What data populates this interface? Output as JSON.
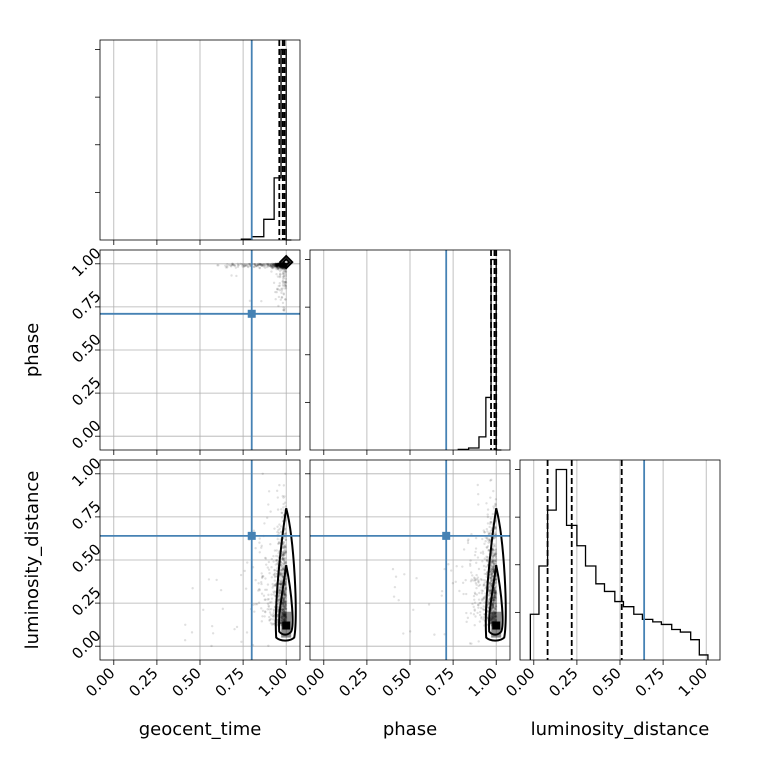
{
  "chart_data": {
    "type": "scatter",
    "parameters": [
      {
        "name": "geocent_time",
        "truth": 0.8,
        "quantiles": [
          0.96,
          0.98,
          0.99
        ]
      },
      {
        "name": "phase",
        "truth": 0.71,
        "quantiles": [
          0.97,
          0.99,
          1.0
        ]
      },
      {
        "name": "luminosity_distance",
        "truth": 0.64,
        "quantiles": [
          0.08,
          0.22,
          0.51
        ]
      }
    ],
    "axis_range": [
      -0.08,
      1.08
    ],
    "tick_values": [
      0.0,
      0.25,
      0.5,
      0.75,
      1.0
    ],
    "tick_labels": [
      "0.00",
      "0.25",
      "0.50",
      "0.75",
      "1.00"
    ],
    "truth_color": "#4682b4",
    "grid": true,
    "histograms": {
      "geocent_time": {
        "bin_edges": [
          0.74,
          0.8,
          0.87,
          0.93,
          0.97,
          1.0,
          1.03
        ],
        "heights": [
          0.01,
          0.04,
          0.25,
          0.75,
          2.3,
          0
        ]
      },
      "phase": {
        "bin_edges": [
          0.78,
          0.84,
          0.9,
          0.94,
          0.97,
          1.0,
          1.03
        ],
        "heights": [
          0.01,
          0.03,
          0.2,
          0.8,
          2.9,
          0
        ]
      },
      "luminosity_distance": {
        "bin_edges": [
          -0.02,
          0.03,
          0.08,
          0.13,
          0.19,
          0.25,
          0.3,
          0.36,
          0.41,
          0.47,
          0.52,
          0.58,
          0.63,
          0.69,
          0.74,
          0.8,
          0.85,
          0.91,
          0.96,
          1.01
        ],
        "heights": [
          0.18,
          0.37,
          0.59,
          0.75,
          0.53,
          0.45,
          0.37,
          0.3,
          0.27,
          0.23,
          0.21,
          0.18,
          0.16,
          0.15,
          0.14,
          0.12,
          0.11,
          0.08,
          0.02
        ]
      }
    },
    "best_fit_marker": {
      "phase_vs_geocent_time": [
        1.0,
        1.01
      ],
      "luminosity_distance_vs_geocent_time": [
        1.0,
        0.12
      ],
      "luminosity_distance_vs_phase": [
        1.0,
        0.12
      ]
    }
  }
}
